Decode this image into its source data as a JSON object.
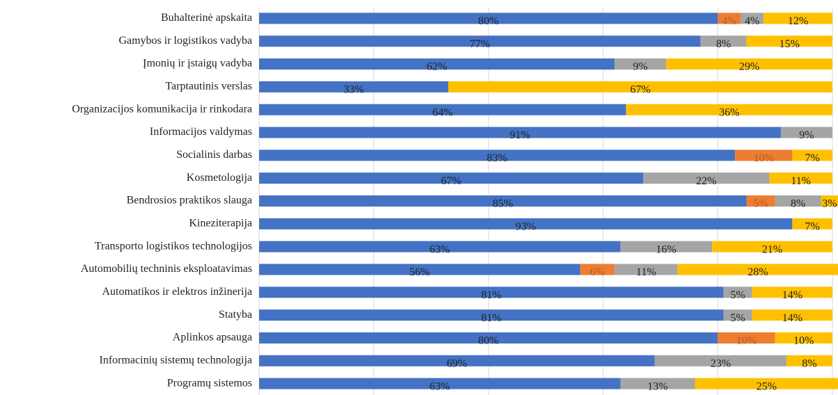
{
  "chart_data": {
    "type": "stacked-bar-horizontal",
    "categories": [
      "Buhalterinė apskaita",
      "Gamybos ir logistikos vadyba",
      "Įmonių ir įstaigų vadyba",
      "Tarptautinis verslas",
      "Organizacijos komunikacija ir rinkodara",
      "Informacijos valdymas",
      "Socialinis darbas",
      "Kosmetologija",
      "Bendrosios praktikos slauga",
      "Kineziterapija",
      "Transporto logistikos technologijos",
      "Automobilių techninis eksploatavimas",
      "Automatikos ir elektros inžinerija",
      "Statyba",
      "Aplinkos apsauga",
      "Informacinių sistemų technologija",
      "Programų sistemos"
    ],
    "series": [
      {
        "color": "#4472c4",
        "values": [
          80,
          77,
          62,
          33,
          64,
          91,
          83,
          67,
          85,
          93,
          63,
          56,
          81,
          81,
          80,
          69,
          63
        ],
        "value_labels": [
          "80%",
          "77%",
          "62%",
          "33%",
          "64%",
          "91%",
          "83%",
          "67%",
          "85%",
          "93%",
          "63%",
          "56%",
          "81%",
          "81%",
          "80%",
          "69%",
          "63%"
        ]
      },
      {
        "color": "#ed7d31",
        "values": [
          4,
          null,
          null,
          null,
          null,
          null,
          10,
          null,
          5,
          null,
          null,
          6,
          null,
          null,
          10,
          null,
          null
        ],
        "value_labels": [
          "4%",
          null,
          null,
          null,
          null,
          null,
          "10%",
          null,
          "5%",
          null,
          null,
          "6%",
          null,
          null,
          "10%",
          null,
          null
        ]
      },
      {
        "color": "#a5a5a5",
        "values": [
          4,
          8,
          9,
          null,
          null,
          9,
          null,
          22,
          8,
          null,
          16,
          11,
          5,
          5,
          null,
          23,
          13
        ],
        "value_labels": [
          "4%",
          "8%",
          "9%",
          null,
          null,
          "9%",
          null,
          "22%",
          "8%",
          null,
          "16%",
          "11%",
          "5%",
          "5%",
          null,
          "23%",
          "13%"
        ]
      },
      {
        "color": "#ffc000",
        "values": [
          12,
          15,
          29,
          67,
          36,
          null,
          7,
          11,
          3,
          7,
          21,
          28,
          14,
          14,
          10,
          8,
          25
        ],
        "value_labels": [
          "12%",
          "15%",
          "29%",
          "67%",
          "36%",
          null,
          "7%",
          "11%",
          "3%",
          "7%",
          "21%",
          "28%",
          "14%",
          "14%",
          "10%",
          "8%",
          "25%"
        ]
      }
    ],
    "xlim": [
      0,
      100
    ],
    "xticks": [
      0,
      20,
      40,
      60,
      80,
      100
    ],
    "grid": true
  }
}
